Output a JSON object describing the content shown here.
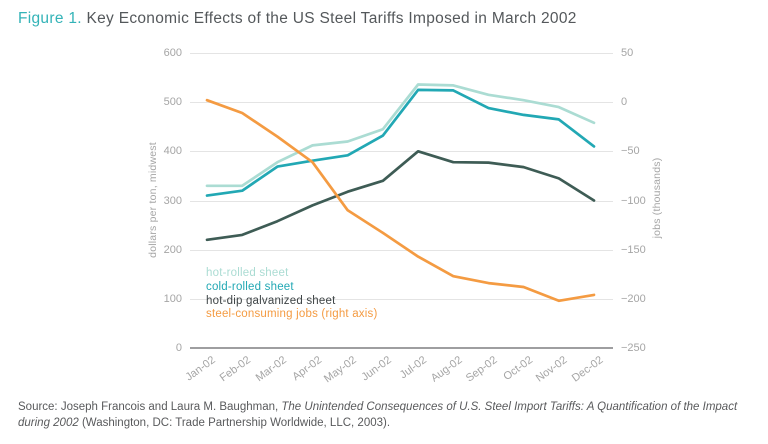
{
  "title": {
    "prefix": "Figure 1.",
    "rest": " Key Economic Effects of the US Steel Tariffs Imposed in March 2002"
  },
  "chart_data": {
    "type": "line",
    "title": "Key Economic Effects of the US Steel Tariffs Imposed in March 2002",
    "categories": [
      "Jan-02",
      "Feb-02",
      "Mar-02",
      "Apr-02",
      "May-02",
      "Jun-02",
      "Jul-02",
      "Aug-02",
      "Sep-02",
      "Oct-02",
      "Nov-02",
      "Dec-02"
    ],
    "series": [
      {
        "name": "hot-rolled sheet",
        "axis": "left",
        "color": "#abdcd3",
        "values": [
          330,
          330,
          378,
          412,
          420,
          445,
          536,
          534,
          515,
          504,
          490,
          458
        ]
      },
      {
        "name": "cold-rolled sheet",
        "axis": "left",
        "color": "#22a8b4",
        "values": [
          310,
          320,
          369,
          381,
          392,
          432,
          525,
          524,
          488,
          474,
          465,
          410
        ]
      },
      {
        "name": "hot-dip galvanized sheet",
        "axis": "left",
        "color": "#3e5c55",
        "legend_color": "#3f4547",
        "values": [
          220,
          230,
          258,
          290,
          318,
          340,
          400,
          378,
          377,
          368,
          345,
          300
        ]
      },
      {
        "name": "steel-consuming jobs (right axis)",
        "axis": "right",
        "color": "#f49b42",
        "values": [
          2,
          -11,
          -35,
          -61,
          -110,
          -133,
          -157,
          -177,
          -184,
          -188,
          -202,
          -196
        ]
      }
    ],
    "left_axis": {
      "label": "dollars per ton, midwest",
      "min": 0,
      "max": 600,
      "step": 100,
      "ticks": [
        {
          "value": 600,
          "label": "600"
        },
        {
          "value": 500,
          "label": "500"
        },
        {
          "value": 400,
          "label": "400"
        },
        {
          "value": 300,
          "label": "300"
        },
        {
          "value": 200,
          "label": "200"
        },
        {
          "value": 100,
          "label": "100"
        },
        {
          "value": 0,
          "label": "0"
        }
      ]
    },
    "right_axis": {
      "label": "jobs (thousands)",
      "min": -250,
      "max": 50,
      "step": 50,
      "ticks": [
        {
          "value": 50,
          "label": "50"
        },
        {
          "value": 0,
          "label": "0"
        },
        {
          "value": -50,
          "label": "−50"
        },
        {
          "value": -100,
          "label": "−100"
        },
        {
          "value": -150,
          "label": "−150"
        },
        {
          "value": -200,
          "label": "−200"
        },
        {
          "value": -250,
          "label": "−250"
        }
      ]
    },
    "grid": "horizontal",
    "legend_position": "inside-bottom-left"
  },
  "source": {
    "pre": "Source: Joseph Francois and Laura M. Baughman, ",
    "italic": "The Unintended Consequences of U.S. Steel Import Tariffs: A Quantification of the Impact during 2002",
    "post": " (Washington, DC: Trade Partnership Worldwide, LLC, 2003)."
  },
  "colors": {
    "accent_teal": "#33b3b7",
    "title_text": "#54585b",
    "axis_text": "#a5a5a5",
    "gridline": "#e4e4e4",
    "baseline": "#9e9ea0",
    "source_text": "#595a5c"
  }
}
